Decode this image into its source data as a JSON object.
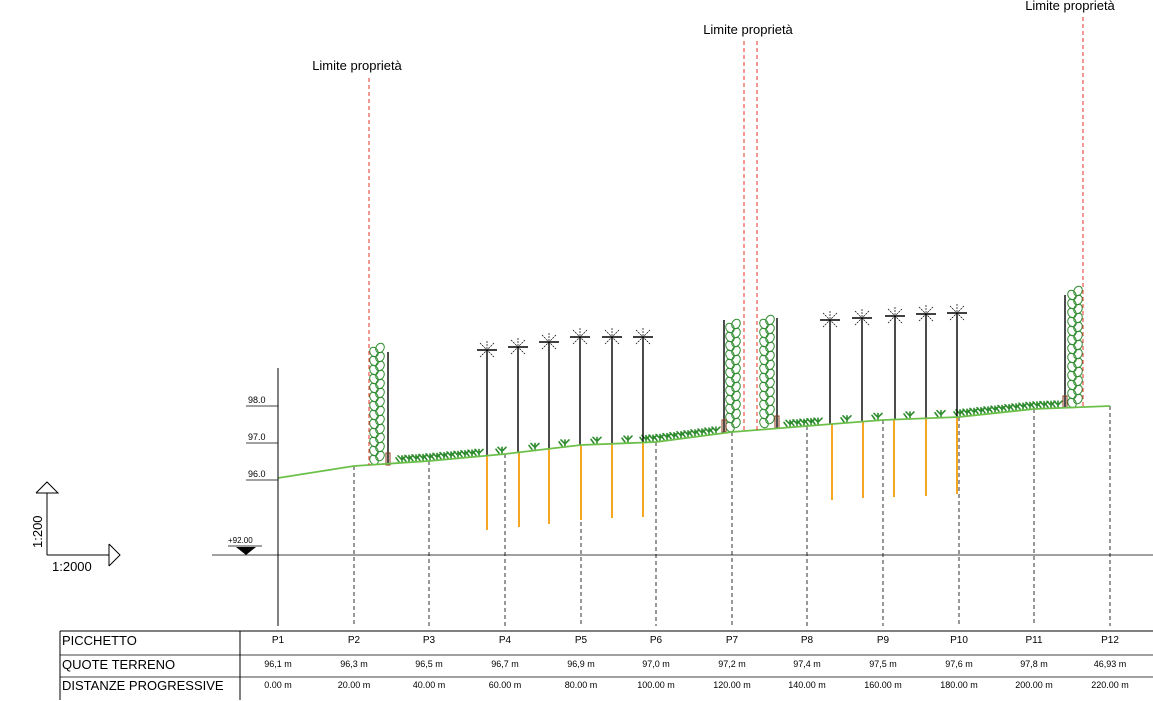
{
  "property_limits": [
    {
      "label": "Limite proprietà"
    },
    {
      "label": "Limite proprietà"
    },
    {
      "label": "Limite proprietà"
    }
  ],
  "scale": {
    "vertical": "1:200",
    "horizontal": "1:2000"
  },
  "datum": {
    "label": "+92.00",
    "value": 92.0
  },
  "elevation_ticks": [
    "98.0",
    "97.0",
    "96.0"
  ],
  "table": {
    "rows": [
      {
        "header": "PICCHETTO",
        "values": [
          "P1",
          "P2",
          "P3",
          "P4",
          "P5",
          "P6",
          "P7",
          "P8",
          "P9",
          "P10",
          "P11",
          "P12"
        ]
      },
      {
        "header": "QUOTE TERRENO",
        "values": [
          "96,1 m",
          "96,3 m",
          "96,5 m",
          "96,7 m",
          "96,9 m",
          "97,0 m",
          "97,2 m",
          "97,4 m",
          "97,5 m",
          "97,6 m",
          "97,8 m",
          "46,93 m"
        ]
      },
      {
        "header": "DISTANZE PROGRESSIVE",
        "values": [
          "0.00 m",
          "20.00 m",
          "40.00 m",
          "60.00 m",
          "80.00 m",
          "100.00 m",
          "120.00 m",
          "140.00 m",
          "160.00 m",
          "180.00 m",
          "200.00 m",
          "220.00 m"
        ]
      }
    ]
  },
  "colors": {
    "ground": "#6cc04a",
    "foundation": "#f5a623",
    "limit": "#e8302a",
    "hedge": "#2e8b2e",
    "line": "#000000"
  }
}
